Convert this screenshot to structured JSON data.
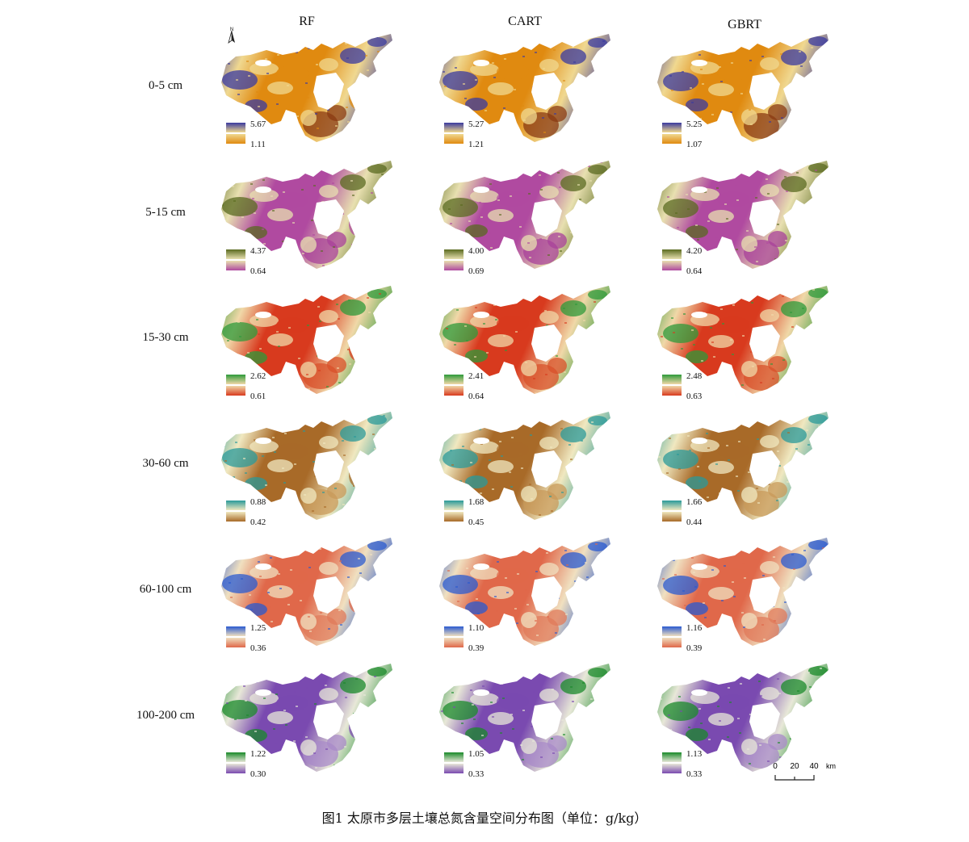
{
  "figure": {
    "caption": "图1  太原市多层土壤总氮含量空间分布图（单位：g/kg）",
    "columns": [
      "RF",
      "CART",
      "GBRT"
    ],
    "north_label": "N",
    "scale": {
      "ticks": [
        "0",
        "20",
        "40"
      ],
      "unit": "km"
    },
    "rows": [
      {
        "depth": "0-5 cm",
        "colors": {
          "high": "#3a3aa0",
          "mid": "#f0d890",
          "low": "#e08a10",
          "patch": "#8a3a12"
        },
        "legends": [
          {
            "max": "5.67",
            "min": "1.11"
          },
          {
            "max": "5.27",
            "min": "1.21"
          },
          {
            "max": "5.25",
            "min": "1.07"
          }
        ]
      },
      {
        "depth": "5-15 cm",
        "colors": {
          "high": "#5a6a20",
          "mid": "#e8e0b0",
          "low": "#b04aa0",
          "patch": "#a8409a"
        },
        "legends": [
          {
            "max": "4.37",
            "min": "0.64"
          },
          {
            "max": "4.00",
            "min": "0.69"
          },
          {
            "max": "4.20",
            "min": "0.64"
          }
        ]
      },
      {
        "depth": "15-30 cm",
        "colors": {
          "high": "#2e9a3a",
          "mid": "#f0d8a8",
          "low": "#d83a1e",
          "patch": "#d8502a"
        },
        "legends": [
          {
            "max": "2.62",
            "min": "0.61"
          },
          {
            "max": "2.41",
            "min": "0.64"
          },
          {
            "max": "2.48",
            "min": "0.63"
          }
        ]
      },
      {
        "depth": "30-60 cm",
        "colors": {
          "high": "#2a9a9a",
          "mid": "#f0e8c0",
          "low": "#a86a28",
          "patch": "#c89a5a"
        },
        "legends": [
          {
            "max": "0.88",
            "min": "0.42"
          },
          {
            "max": "1.68",
            "min": "0.45"
          },
          {
            "max": "1.66",
            "min": "0.44"
          }
        ]
      },
      {
        "depth": "60-100 cm",
        "colors": {
          "high": "#2a5ad0",
          "mid": "#f0e0c0",
          "low": "#e0684a",
          "patch": "#e07a5a"
        },
        "legends": [
          {
            "max": "1.25",
            "min": "0.36"
          },
          {
            "max": "1.10",
            "min": "0.39"
          },
          {
            "max": "1.16",
            "min": "0.39"
          }
        ]
      },
      {
        "depth": "100-200 cm",
        "colors": {
          "high": "#1a8a2a",
          "mid": "#e8e8d8",
          "low": "#7a4ab0",
          "patch": "#a88ac8"
        },
        "legends": [
          {
            "max": "1.22",
            "min": "0.30"
          },
          {
            "max": "1.05",
            "min": "0.33"
          },
          {
            "max": "1.13",
            "min": "0.33"
          }
        ]
      }
    ]
  }
}
